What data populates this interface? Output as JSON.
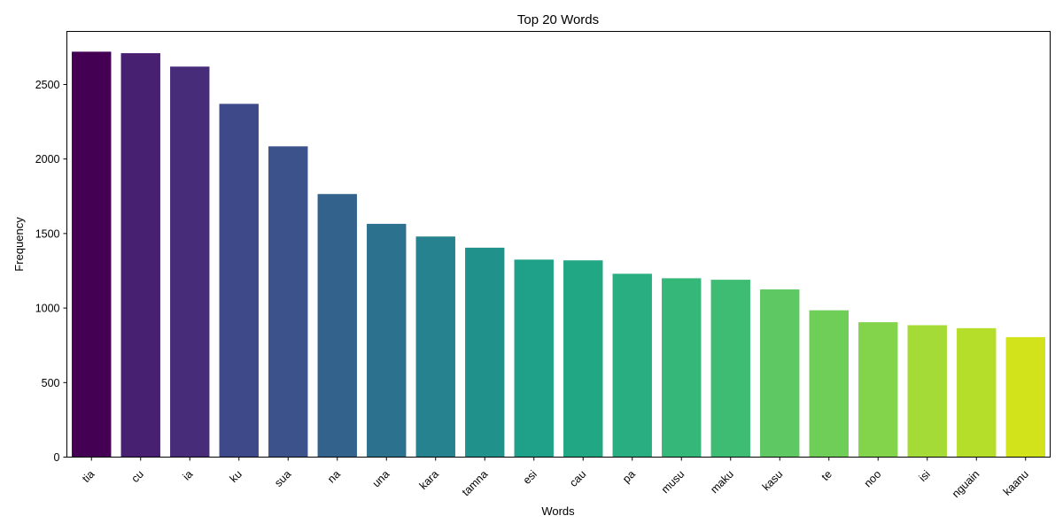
{
  "chart_data": {
    "type": "bar",
    "title": "Top 20 Words",
    "xlabel": "Words",
    "ylabel": "Frequency",
    "categories": [
      "tia",
      "cu",
      "ia",
      "ku",
      "sua",
      "na",
      "una",
      "kara",
      "tamna",
      "esi",
      "cau",
      "pa",
      "musu",
      "maku",
      "kasu",
      "te",
      "noo",
      "isi",
      "nguain",
      "kaanu"
    ],
    "values": [
      2720,
      2710,
      2620,
      2370,
      2085,
      1765,
      1565,
      1480,
      1405,
      1325,
      1320,
      1230,
      1200,
      1190,
      1125,
      985,
      905,
      885,
      865,
      805
    ],
    "colors": [
      "#440154",
      "#482071",
      "#472c7a",
      "#3e4989",
      "#3b528b",
      "#33638d",
      "#2c728e",
      "#26828e",
      "#21918c",
      "#1fa088",
      "#22a785",
      "#28ae80",
      "#35b779",
      "#3fbc73",
      "#5ec962",
      "#6ece58",
      "#84d44b",
      "#a5db36",
      "#b5de2b",
      "#d2e21b"
    ],
    "yticks": [
      0,
      500,
      1000,
      1500,
      2000,
      2500
    ],
    "ylim": [
      0,
      2856
    ],
    "grid": false,
    "xtick_rotation": 45
  }
}
